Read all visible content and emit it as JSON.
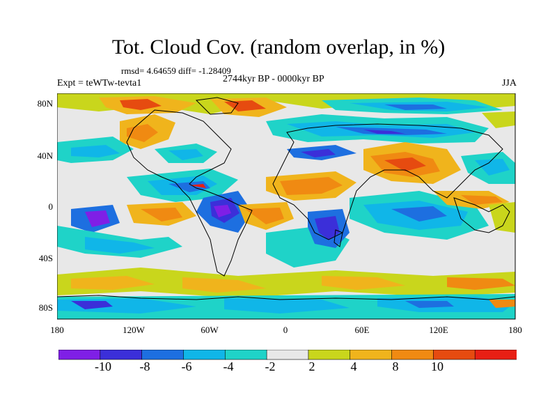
{
  "title": "Tot. Cloud Cov. (random overlap, in %)",
  "stats": "rmsd= 4.64659 diff= -1.28409",
  "period": "2744kyr BP - 0000kyr BP",
  "experiment": "Expt = teWTw-tevta1",
  "season": "JJA",
  "lat_labels": [
    "80N",
    "40N",
    "0",
    "40S",
    "80S"
  ],
  "lon_labels": [
    "180",
    "120W",
    "60W",
    "0",
    "60E",
    "120E",
    "180"
  ],
  "colorbar": {
    "labels": [
      "-10",
      "-8",
      "-6",
      "-4",
      "-2",
      "2",
      "4",
      "8",
      "10"
    ],
    "colors": [
      "#7f1fe6",
      "#3b2fd9",
      "#1d6fe0",
      "#10b6e8",
      "#1fd3c8",
      "#e8e8e8",
      "#c9d61c",
      "#f0b41c",
      "#f08a12",
      "#e64b10",
      "#e81f14"
    ]
  },
  "map_colors": {
    "background": "#e8e8e8",
    "coast": "#000000"
  }
}
